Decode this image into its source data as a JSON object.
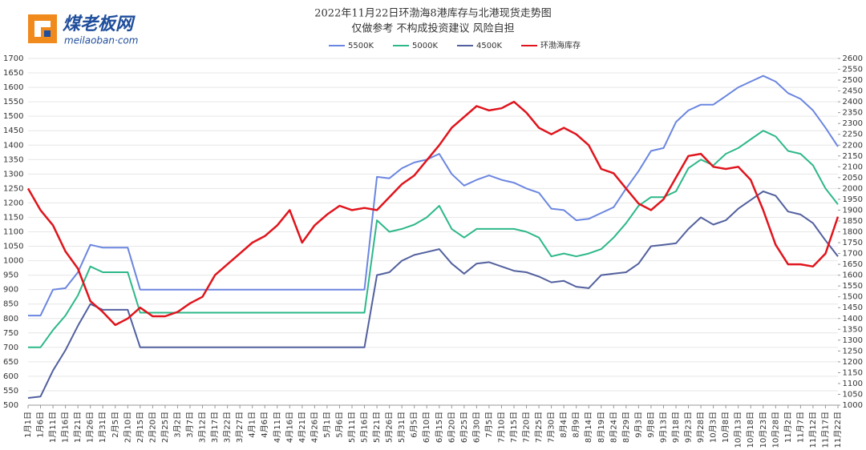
{
  "logo": {
    "name": "煤老板网",
    "url": "meilaoban·com"
  },
  "chart_data": {
    "type": "line",
    "title": "2022年11月22日环渤海8港库存与北港现货走势图",
    "subtitle": "仅做参考 不构成投资建议 风险自担",
    "categories": [
      "1月1日",
      "1月6日",
      "1月11日",
      "1月16日",
      "1月21日",
      "1月26日",
      "1月31日",
      "2月5日",
      "2月10日",
      "2月15日",
      "2月20日",
      "2月25日",
      "3月2日",
      "3月7日",
      "3月12日",
      "3月17日",
      "3月22日",
      "3月27日",
      "4月1日",
      "4月6日",
      "4月11日",
      "4月16日",
      "4月21日",
      "4月26日",
      "5月1日",
      "5月6日",
      "5月11日",
      "5月16日",
      "5月21日",
      "5月26日",
      "5月31日",
      "6月5日",
      "6月10日",
      "6月15日",
      "6月20日",
      "6月25日",
      "6月30日",
      "7月5日",
      "7月10日",
      "7月15日",
      "7月20日",
      "7月25日",
      "7月30日",
      "8月4日",
      "8月9日",
      "8月14日",
      "8月19日",
      "8月24日",
      "8月29日",
      "9月3日",
      "9月8日",
      "9月13日",
      "9月18日",
      "9月23日",
      "9月28日",
      "10月3日",
      "10月8日",
      "10月13日",
      "10月18日",
      "10月23日",
      "10月28日",
      "11月2日",
      "11月7日",
      "11月12日",
      "11月17日",
      "11月22日"
    ],
    "series": [
      {
        "name": "5500K",
        "color": "#6b86e0",
        "values": [
          810,
          810,
          900,
          905,
          960,
          1055,
          1045,
          1045,
          1045,
          900,
          900,
          900,
          900,
          900,
          900,
          900,
          900,
          900,
          900,
          900,
          900,
          900,
          900,
          900,
          900,
          900,
          900,
          900,
          1290,
          1285,
          1320,
          1340,
          1350,
          1370,
          1300,
          1260,
          1280,
          1295,
          1280,
          1270,
          1250,
          1235,
          1180,
          1175,
          1140,
          1145,
          1165,
          1185,
          1250,
          1310,
          1380,
          1390,
          1480,
          1520,
          1540,
          1540,
          1570,
          1600,
          1620,
          1640,
          1620,
          1580,
          1560,
          1520,
          1460,
          1395
        ]
      },
      {
        "name": "5000K",
        "color": "#2db888",
        "values": [
          700,
          700,
          760,
          810,
          880,
          980,
          960,
          960,
          960,
          820,
          820,
          820,
          820,
          820,
          820,
          820,
          820,
          820,
          820,
          820,
          820,
          820,
          820,
          820,
          820,
          820,
          820,
          820,
          1140,
          1100,
          1110,
          1125,
          1150,
          1190,
          1110,
          1080,
          1110,
          1110,
          1110,
          1110,
          1100,
          1080,
          1015,
          1025,
          1015,
          1025,
          1040,
          1080,
          1130,
          1190,
          1220,
          1220,
          1240,
          1320,
          1350,
          1330,
          1370,
          1390,
          1420,
          1450,
          1430,
          1380,
          1370,
          1330,
          1250,
          1195
        ]
      },
      {
        "name": "4500K",
        "color": "#52609e",
        "values": [
          525,
          530,
          620,
          690,
          775,
          850,
          830,
          830,
          830,
          700,
          700,
          700,
          700,
          700,
          700,
          700,
          700,
          700,
          700,
          700,
          700,
          700,
          700,
          700,
          700,
          700,
          700,
          700,
          950,
          960,
          1000,
          1020,
          1030,
          1040,
          990,
          955,
          990,
          995,
          980,
          965,
          960,
          945,
          925,
          930,
          910,
          905,
          950,
          955,
          960,
          990,
          1050,
          1055,
          1060,
          1110,
          1150,
          1125,
          1140,
          1180,
          1210,
          1240,
          1225,
          1170,
          1160,
          1130,
          1070,
          1015
        ]
      },
      {
        "name": "环渤海库存",
        "color": "#e0141c",
        "axis": "y2",
        "values": [
          2000,
          1900,
          1830,
          1710,
          1630,
          1480,
          1430,
          1370,
          1400,
          1450,
          1410,
          1410,
          1430,
          1470,
          1500,
          1600,
          1650,
          1700,
          1750,
          1780,
          1830,
          1900,
          1750,
          1830,
          1880,
          1920,
          1900,
          1910,
          1900,
          1960,
          2020,
          2060,
          2130,
          2200,
          2280,
          2330,
          2380,
          2360,
          2370,
          2400,
          2350,
          2280,
          2250,
          2280,
          2250,
          2200,
          2090,
          2070,
          2000,
          1930,
          1900,
          1950,
          2050,
          2150,
          2160,
          2100,
          2090,
          2100,
          2040,
          1900,
          1740,
          1650,
          1650,
          1640,
          1700,
          1870
        ]
      }
    ],
    "ylim": [
      500,
      1700
    ],
    "yticks": [
      500,
      550,
      600,
      650,
      700,
      750,
      800,
      850,
      900,
      950,
      1000,
      1050,
      1100,
      1150,
      1200,
      1250,
      1300,
      1350,
      1400,
      1450,
      1500,
      1550,
      1600,
      1650,
      1700
    ],
    "y2lim": [
      1000,
      2600
    ],
    "y2ticks": [
      1000,
      1050,
      1100,
      1150,
      1200,
      1250,
      1300,
      1350,
      1400,
      1450,
      1500,
      1550,
      1600,
      1650,
      1700,
      1750,
      1800,
      1850,
      1900,
      1950,
      2000,
      2050,
      2100,
      2150,
      2200,
      2250,
      2300,
      2350,
      2400,
      2450,
      2500,
      2550,
      2600
    ],
    "grid": true,
    "legend": "top"
  }
}
